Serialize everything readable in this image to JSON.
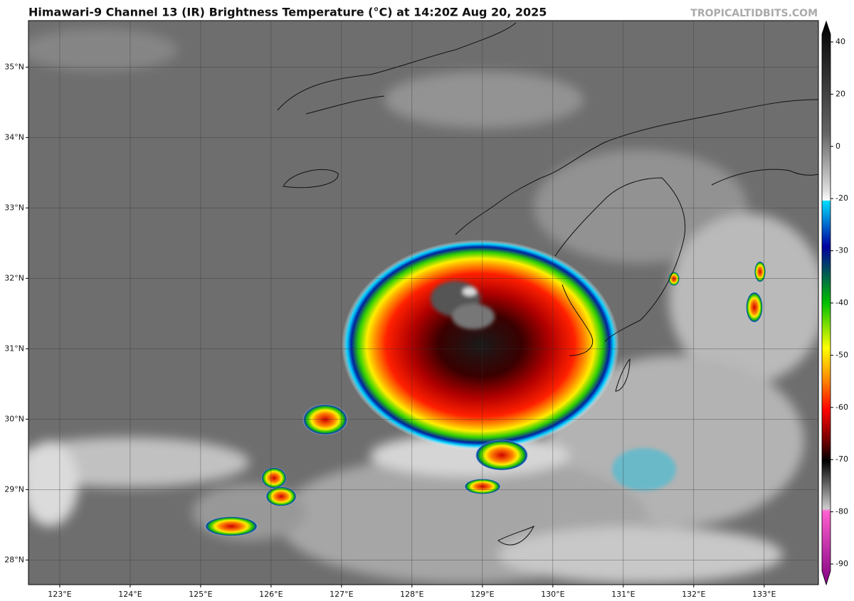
{
  "header": {
    "title": "Himawari-9 Channel 13 (IR) Brightness Temperature (°C) at 14:20Z Aug 20, 2025",
    "brand": "TROPICALTIDBITS.COM"
  },
  "map": {
    "lonlim": [
      122.556,
      133.77
    ],
    "latlim": [
      27.65,
      35.66
    ],
    "lon_ticks": [
      {
        "value": 123,
        "label": "123°E"
      },
      {
        "value": 124,
        "label": "124°E"
      },
      {
        "value": 125,
        "label": "125°E"
      },
      {
        "value": 126,
        "label": "126°E"
      },
      {
        "value": 127,
        "label": "127°E"
      },
      {
        "value": 128,
        "label": "128°E"
      },
      {
        "value": 129,
        "label": "129°E"
      },
      {
        "value": 130,
        "label": "130°E"
      },
      {
        "value": 131,
        "label": "131°E"
      },
      {
        "value": 132,
        "label": "132°E"
      },
      {
        "value": 133,
        "label": "133°E"
      }
    ],
    "lat_ticks": [
      {
        "value": 28,
        "label": "28°N"
      },
      {
        "value": 29,
        "label": "29°N"
      },
      {
        "value": 30,
        "label": "30°N"
      },
      {
        "value": 31,
        "label": "31°N"
      },
      {
        "value": 32,
        "label": "32°N"
      },
      {
        "value": 33,
        "label": "33°N"
      },
      {
        "value": 34,
        "label": "34°N"
      },
      {
        "value": 35,
        "label": "35°N"
      }
    ]
  },
  "colorbar": {
    "ticks": [
      40,
      20,
      0,
      -20,
      -30,
      -40,
      -50,
      -60,
      -70,
      -80,
      -90
    ]
  }
}
